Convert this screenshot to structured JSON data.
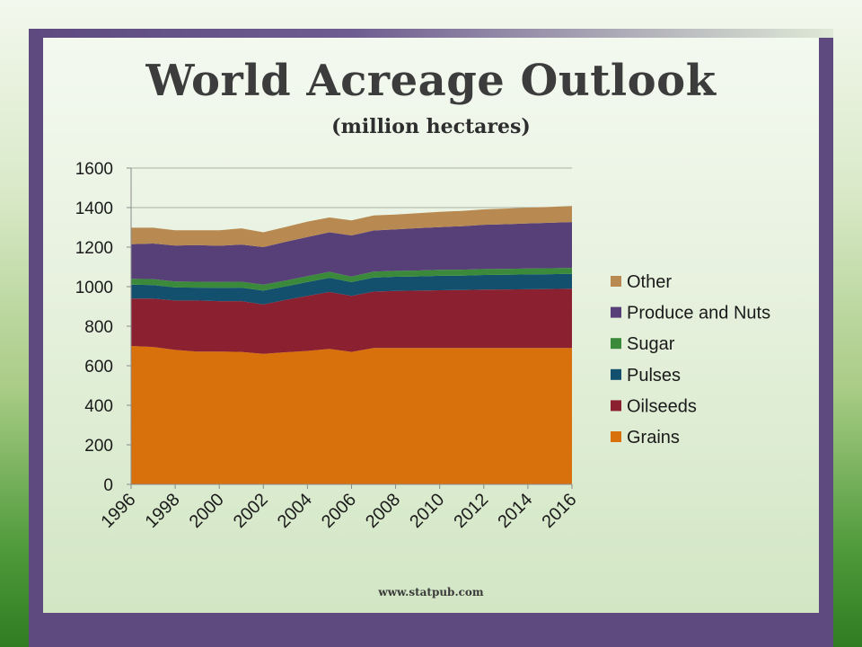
{
  "slide": {
    "title": "World Acreage Outlook",
    "subtitle": "(million hectares)",
    "footer": "www.statpub.com"
  },
  "chart_data": {
    "type": "area",
    "stacked": true,
    "x": [
      1996,
      1997,
      1998,
      1999,
      2000,
      2001,
      2002,
      2003,
      2004,
      2005,
      2006,
      2007,
      2008,
      2009,
      2010,
      2011,
      2012,
      2013,
      2014,
      2015,
      2016
    ],
    "x_tick_labels": [
      "1996",
      "1998",
      "2000",
      "2002",
      "2004",
      "2006",
      "2008",
      "2010",
      "2012",
      "2014",
      "2016"
    ],
    "ylim": [
      0,
      1600
    ],
    "y_ticks": [
      0,
      200,
      400,
      600,
      800,
      1000,
      1200,
      1400,
      1600
    ],
    "grid": true,
    "legend_position": "right",
    "series": [
      {
        "name": "Grains",
        "color": "#d8700c",
        "values": [
          700,
          695,
          680,
          672,
          672,
          670,
          660,
          668,
          675,
          685,
          670,
          690,
          690,
          690,
          690,
          690,
          690,
          690,
          690,
          690,
          690
        ]
      },
      {
        "name": "Oilseeds",
        "color": "#8b2130",
        "values": [
          240,
          245,
          250,
          258,
          255,
          257,
          250,
          265,
          278,
          288,
          283,
          285,
          288,
          290,
          292,
          293,
          295,
          296,
          297,
          298,
          300
        ]
      },
      {
        "name": "Pulses",
        "color": "#12506e",
        "values": [
          70,
          68,
          66,
          65,
          67,
          68,
          70,
          68,
          70,
          72,
          70,
          71,
          72,
          72,
          73,
          73,
          74,
          74,
          75,
          75,
          75
        ]
      },
      {
        "name": "Sugar",
        "color": "#3b8a3b",
        "values": [
          30,
          30,
          30,
          30,
          30,
          30,
          30,
          30,
          30,
          30,
          28,
          30,
          30,
          30,
          30,
          30,
          30,
          30,
          30,
          30,
          30
        ]
      },
      {
        "name": "Produce and Nuts",
        "color": "#574077",
        "values": [
          175,
          180,
          182,
          185,
          183,
          188,
          190,
          196,
          198,
          200,
          208,
          208,
          210,
          214,
          216,
          220,
          224,
          226,
          228,
          230,
          232
        ]
      },
      {
        "name": "Other",
        "color": "#b88a52",
        "values": [
          83,
          80,
          77,
          75,
          78,
          82,
          75,
          75,
          78,
          75,
          76,
          76,
          75,
          76,
          77,
          77,
          78,
          79,
          80,
          80,
          81
        ]
      }
    ]
  }
}
